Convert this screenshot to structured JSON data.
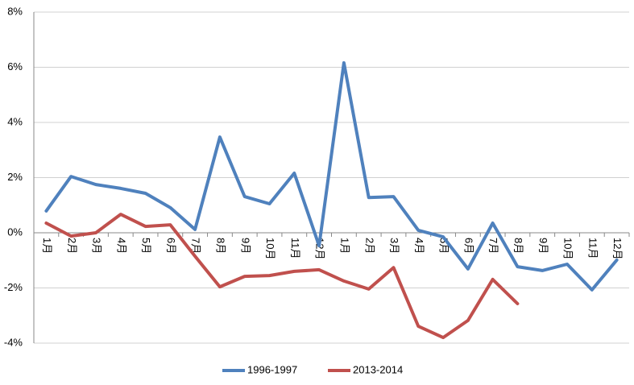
{
  "chart_data": {
    "type": "line",
    "categories": [
      "1月",
      "2月",
      "3月",
      "4月",
      "5月",
      "6月",
      "7月",
      "8月",
      "9月",
      "10月",
      "11月",
      "12月",
      "1月",
      "2月",
      "3月",
      "4月",
      "5月",
      "6月",
      "7月",
      "8月",
      "9月",
      "10月",
      "11月",
      "12月"
    ],
    "series": [
      {
        "name": "1996-1997",
        "color": "#4f81bd",
        "values": [
          0.79,
          2.04,
          1.75,
          1.61,
          1.43,
          0.91,
          0.12,
          3.47,
          1.31,
          1.05,
          2.16,
          -0.47,
          6.16,
          1.28,
          1.31,
          0.09,
          -0.15,
          -1.31,
          0.35,
          -1.23,
          -1.37,
          -1.14,
          -2.07,
          -0.99
        ]
      },
      {
        "name": "2013-2014",
        "color": "#c0504d",
        "values": [
          0.35,
          -0.12,
          0.0,
          0.67,
          0.23,
          0.29,
          -0.85,
          -1.96,
          -1.58,
          -1.55,
          -1.4,
          -1.34,
          -1.75,
          -2.04,
          -1.26,
          -3.39,
          -3.8,
          -3.18,
          -1.69,
          -2.57,
          null,
          null,
          null,
          null
        ]
      }
    ],
    "ylim": [
      -4,
      8
    ],
    "yticks": [
      {
        "value": -4,
        "label": "-4%"
      },
      {
        "value": -2,
        "label": "-2%"
      },
      {
        "value": 0,
        "label": "0%"
      },
      {
        "value": 2,
        "label": "2%"
      },
      {
        "value": 4,
        "label": "4%"
      },
      {
        "value": 6,
        "label": "6%"
      },
      {
        "value": 8,
        "label": "8%"
      }
    ],
    "grid": true,
    "legend": "bottom"
  }
}
